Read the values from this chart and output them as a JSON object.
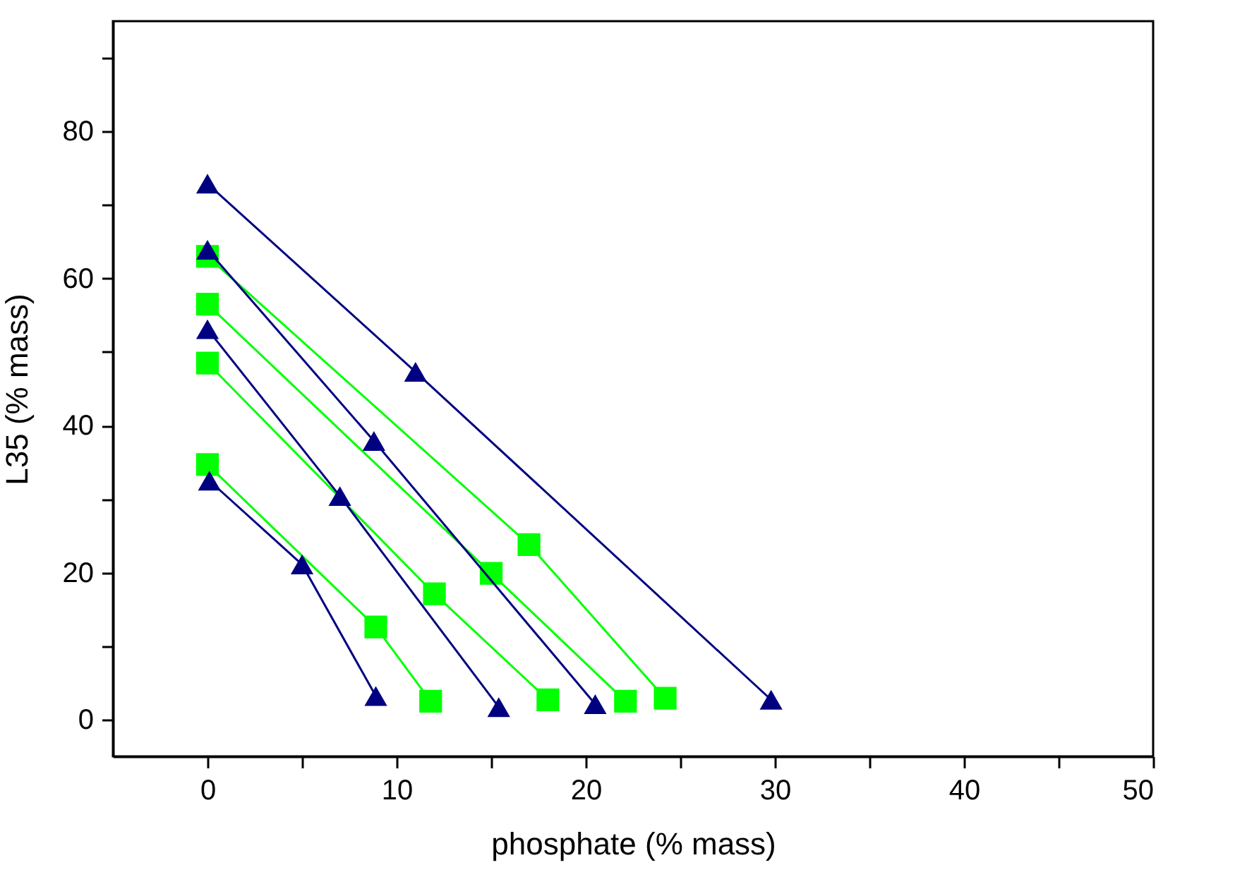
{
  "chart_data": {
    "type": "line",
    "xlabel": "phosphate (% mass)",
    "ylabel": "L35 (% mass)",
    "xlim": [
      -5,
      50
    ],
    "ylim": [
      -5,
      95
    ],
    "xticks": [
      0,
      {
        "value": 5,
        "label": null
      },
      10,
      {
        "value": 15,
        "label": null
      },
      20,
      {
        "value": 25,
        "label": null
      },
      30,
      {
        "value": 35,
        "label": null
      },
      40,
      {
        "value": 45,
        "label": null
      },
      50
    ],
    "yticks": [
      0,
      {
        "value": 10,
        "label": null
      },
      20,
      {
        "value": 30,
        "label": null
      },
      40,
      {
        "value": 50,
        "label": null
      },
      60,
      {
        "value": 70,
        "label": null
      },
      80,
      {
        "value": 90,
        "label": null
      }
    ],
    "line_style": "solid",
    "series": [
      {
        "color": "#00ff00",
        "marker": "square",
        "x": [
          0,
          17.0,
          24.2
        ],
        "values": [
          63.0,
          23.8,
          2.9
        ]
      },
      {
        "color": "#00ff00",
        "marker": "square",
        "x": [
          0,
          15.0,
          22.1
        ],
        "values": [
          56.5,
          19.9,
          2.5
        ]
      },
      {
        "color": "#00ff00",
        "marker": "square",
        "x": [
          0,
          12.0,
          18.0
        ],
        "values": [
          48.5,
          17.1,
          2.7
        ]
      },
      {
        "color": "#00ff00",
        "marker": "square",
        "x": [
          0,
          8.9,
          11.8
        ],
        "values": [
          34.7,
          12.6,
          2.5
        ]
      },
      {
        "color": "#000080",
        "marker": "triangle",
        "x": [
          0,
          11.0,
          29.8
        ],
        "values": [
          72.9,
          47.3,
          2.7
        ]
      },
      {
        "color": "#000080",
        "marker": "triangle",
        "x": [
          0,
          8.8,
          20.5
        ],
        "values": [
          63.9,
          37.9,
          2.1
        ]
      },
      {
        "color": "#000080",
        "marker": "triangle",
        "x": [
          0,
          7.0,
          15.4
        ],
        "values": [
          53.1,
          30.4,
          1.7
        ]
      },
      {
        "color": "#000080",
        "marker": "triangle",
        "x": [
          0.1,
          5.0,
          8.9
        ],
        "values": [
          32.5,
          21.1,
          3.2
        ]
      }
    ]
  }
}
